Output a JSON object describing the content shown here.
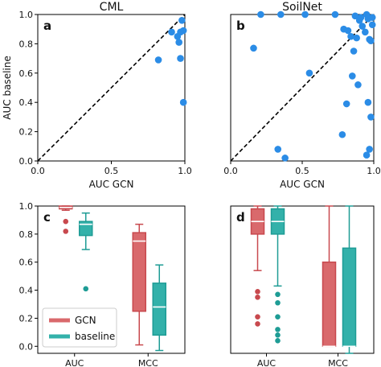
{
  "colors": {
    "point": "#2b8ce6",
    "gcn": "#c8494e",
    "gcn_fill": "#d9696c",
    "baseline": "#1e9c95",
    "baseline_fill": "#33b1aa"
  },
  "chart_data": [
    {
      "id": "a",
      "type": "scatter",
      "panel_label": "a",
      "title": "CML",
      "xlabel": "AUC GCN",
      "ylabel": "AUC baseline",
      "xlim": [
        0,
        1
      ],
      "ylim": [
        0,
        1
      ],
      "xticks": [
        "0.0",
        "0.5",
        "1.0"
      ],
      "yticks": [
        "0.0",
        "0.2",
        "0.4",
        "0.6",
        "0.8",
        "1.0"
      ],
      "diagonal": true,
      "points": [
        {
          "x": 0.82,
          "y": 0.69
        },
        {
          "x": 0.91,
          "y": 0.88
        },
        {
          "x": 0.95,
          "y": 0.85
        },
        {
          "x": 0.96,
          "y": 0.81
        },
        {
          "x": 0.97,
          "y": 0.88
        },
        {
          "x": 0.98,
          "y": 0.96
        },
        {
          "x": 0.99,
          "y": 0.89
        },
        {
          "x": 0.97,
          "y": 0.7
        },
        {
          "x": 0.99,
          "y": 0.4
        }
      ]
    },
    {
      "id": "b",
      "type": "scatter",
      "panel_label": "b",
      "title": "SoilNet",
      "xlabel": "AUC GCN",
      "ylabel": "",
      "xlim": [
        0,
        1
      ],
      "ylim": [
        0,
        1
      ],
      "xticks": [
        "0.0",
        "0.5",
        "1.0"
      ],
      "yticks": [],
      "diagonal": true,
      "points": [
        {
          "x": 0.16,
          "y": 0.77
        },
        {
          "x": 0.21,
          "y": 1.0
        },
        {
          "x": 0.35,
          "y": 1.0
        },
        {
          "x": 0.52,
          "y": 1.0
        },
        {
          "x": 0.55,
          "y": 0.6
        },
        {
          "x": 0.33,
          "y": 0.08
        },
        {
          "x": 0.38,
          "y": 0.02
        },
        {
          "x": 0.73,
          "y": 1.0
        },
        {
          "x": 0.79,
          "y": 0.9
        },
        {
          "x": 0.82,
          "y": 0.89
        },
        {
          "x": 0.84,
          "y": 0.85
        },
        {
          "x": 0.86,
          "y": 0.75
        },
        {
          "x": 0.87,
          "y": 0.99
        },
        {
          "x": 0.88,
          "y": 0.84
        },
        {
          "x": 0.89,
          "y": 0.52
        },
        {
          "x": 0.9,
          "y": 0.96
        },
        {
          "x": 0.91,
          "y": 0.98
        },
        {
          "x": 0.92,
          "y": 0.92
        },
        {
          "x": 0.94,
          "y": 0.88
        },
        {
          "x": 0.95,
          "y": 1.0
        },
        {
          "x": 0.96,
          "y": 0.97
        },
        {
          "x": 0.97,
          "y": 0.83
        },
        {
          "x": 0.98,
          "y": 0.82
        },
        {
          "x": 0.99,
          "y": 0.98
        },
        {
          "x": 0.81,
          "y": 0.39
        },
        {
          "x": 0.78,
          "y": 0.18
        },
        {
          "x": 0.96,
          "y": 0.4
        },
        {
          "x": 0.95,
          "y": 0.04
        },
        {
          "x": 0.97,
          "y": 0.08
        },
        {
          "x": 0.98,
          "y": 0.3
        },
        {
          "x": 0.85,
          "y": 0.58
        },
        {
          "x": 0.99,
          "y": 0.93
        }
      ]
    },
    {
      "id": "c",
      "type": "box",
      "panel_label": "c",
      "title": "",
      "categories": [
        "AUC",
        "MCC"
      ],
      "ylim": [
        -0.05,
        1.0
      ],
      "yticks": [
        "0.0",
        "0.2",
        "0.4",
        "0.6",
        "0.8",
        "1.0"
      ],
      "legend": {
        "placement": "lower-left",
        "entries": [
          "GCN",
          "baseline"
        ]
      },
      "series": [
        {
          "name": "GCN",
          "boxes": [
            {
              "category": "AUC",
              "whislo": 0.97,
              "q1": 0.98,
              "med": 0.99,
              "q3": 1.0,
              "whishi": 1.0,
              "fliers": [
                0.89,
                0.82
              ]
            },
            {
              "category": "MCC",
              "whislo": 0.01,
              "q1": 0.25,
              "med": 0.75,
              "q3": 0.81,
              "whishi": 0.87,
              "fliers": []
            }
          ]
        },
        {
          "name": "baseline",
          "boxes": [
            {
              "category": "AUC",
              "whislo": 0.69,
              "q1": 0.79,
              "med": 0.87,
              "q3": 0.89,
              "whishi": 0.95,
              "fliers": [
                0.41
              ]
            },
            {
              "category": "MCC",
              "whislo": -0.03,
              "q1": 0.08,
              "med": 0.28,
              "q3": 0.45,
              "whishi": 0.58,
              "fliers": []
            }
          ]
        }
      ]
    },
    {
      "id": "d",
      "type": "box",
      "panel_label": "d",
      "title": "",
      "categories": [
        "AUC",
        "MCC"
      ],
      "ylim": [
        -0.05,
        1.0
      ],
      "yticks": [],
      "series": [
        {
          "name": "GCN",
          "boxes": [
            {
              "category": "AUC",
              "whislo": 0.54,
              "q1": 0.8,
              "med": 0.89,
              "q3": 0.98,
              "whishi": 1.0,
              "fliers": [
                0.39,
                0.35,
                0.21,
                0.16
              ]
            },
            {
              "category": "MCC",
              "whislo": 0.0,
              "q1": 0.0,
              "med": 0.0,
              "q3": 0.6,
              "whishi": 1.0,
              "fliers": []
            }
          ]
        },
        {
          "name": "baseline",
          "boxes": [
            {
              "category": "AUC",
              "whislo": 0.43,
              "q1": 0.8,
              "med": 0.89,
              "q3": 0.98,
              "whishi": 1.0,
              "fliers": [
                0.37,
                0.31,
                0.21,
                0.12,
                0.08,
                0.04
              ]
            },
            {
              "category": "MCC",
              "whislo": -0.05,
              "q1": 0.0,
              "med": 0.0,
              "q3": 0.7,
              "whishi": 1.0,
              "fliers": []
            }
          ]
        }
      ]
    }
  ]
}
